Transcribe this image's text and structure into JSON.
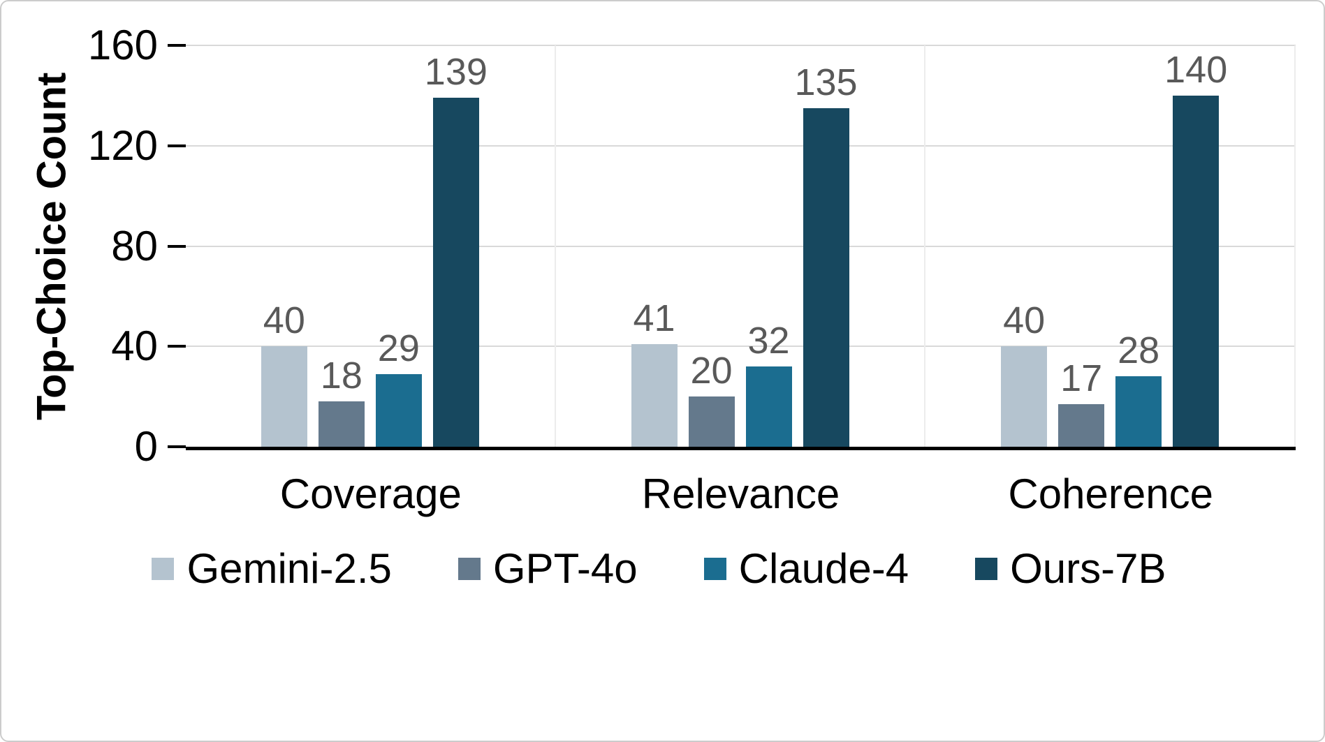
{
  "chart_data": {
    "type": "bar",
    "title": "",
    "xlabel": "",
    "ylabel": "Top-Choice Count",
    "ylim": [
      0,
      160
    ],
    "yticks": [
      0,
      40,
      80,
      120,
      160
    ],
    "grid": "horizontal",
    "legend_position": "bottom",
    "categories": [
      "Coverage",
      "Relevance",
      "Coherence"
    ],
    "series": [
      {
        "name": "Gemini-2.5",
        "color": "#b4c3cf",
        "values": [
          40,
          41,
          40
        ]
      },
      {
        "name": "GPT-4o",
        "color": "#64798c",
        "values": [
          18,
          20,
          17
        ]
      },
      {
        "name": "Claude-4",
        "color": "#1b6d90",
        "values": [
          29,
          32,
          28
        ]
      },
      {
        "name": "Ours-7B",
        "color": "#17485f",
        "values": [
          139,
          135,
          140
        ]
      }
    ],
    "value_label_color": "#595959",
    "axis_color": "#000000",
    "grid_color": "#d9d9d9"
  }
}
